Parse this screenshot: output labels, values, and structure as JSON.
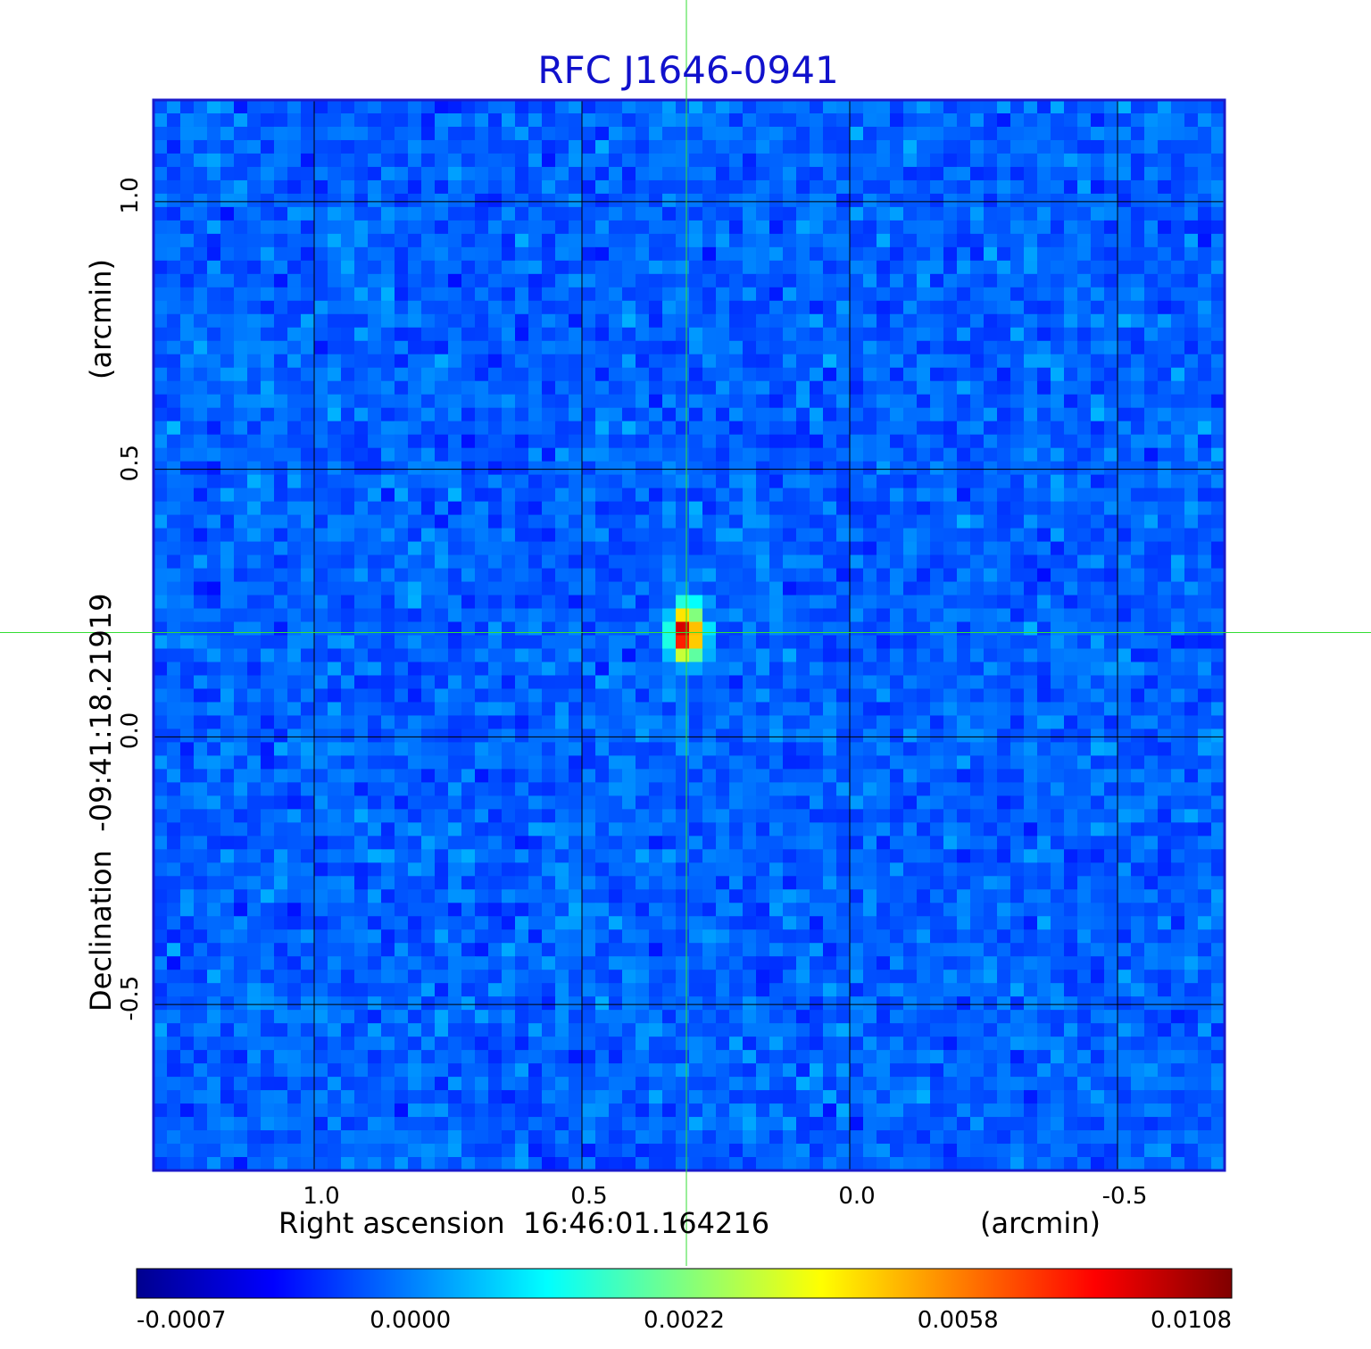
{
  "chart_data": {
    "type": "heatmap",
    "title": "RFC J1646-0941",
    "xlabel": "Right ascension  16:46:01.164216",
    "xunit": "(arcmin)",
    "ylabel": "Declination  -09:41:18.21919",
    "yunit": "(arcmin)",
    "xlim": [
      1.3,
      -0.7
    ],
    "ylim": [
      -0.81,
      1.19
    ],
    "x_ticks": [
      {
        "value": 1.0,
        "label": "1.0"
      },
      {
        "value": 0.5,
        "label": "0.5"
      },
      {
        "value": 0.0,
        "label": "0.0"
      },
      {
        "value": -0.5,
        "label": "-0.5"
      }
    ],
    "y_ticks": [
      {
        "value": 1.0,
        "label": "1.0"
      },
      {
        "value": 0.5,
        "label": "0.5"
      },
      {
        "value": 0.0,
        "label": "0.0"
      },
      {
        "value": -0.5,
        "label": "-0.5"
      }
    ],
    "grid": true,
    "crosshair": {
      "x": 0.305,
      "y": 0.195
    },
    "source": {
      "x": 0.305,
      "y": 0.195,
      "peak": 0.0108
    },
    "colormap": "jet",
    "colorbar": {
      "orientation": "horizontal",
      "ticks": [
        "-0.0007",
        "0.0000",
        "0.0022",
        "0.0058",
        "0.0108"
      ]
    },
    "colors": {
      "frame": "#1a1acc",
      "grid": "#000000",
      "crosshair": "#33dd33",
      "title": "#1111cc"
    }
  }
}
